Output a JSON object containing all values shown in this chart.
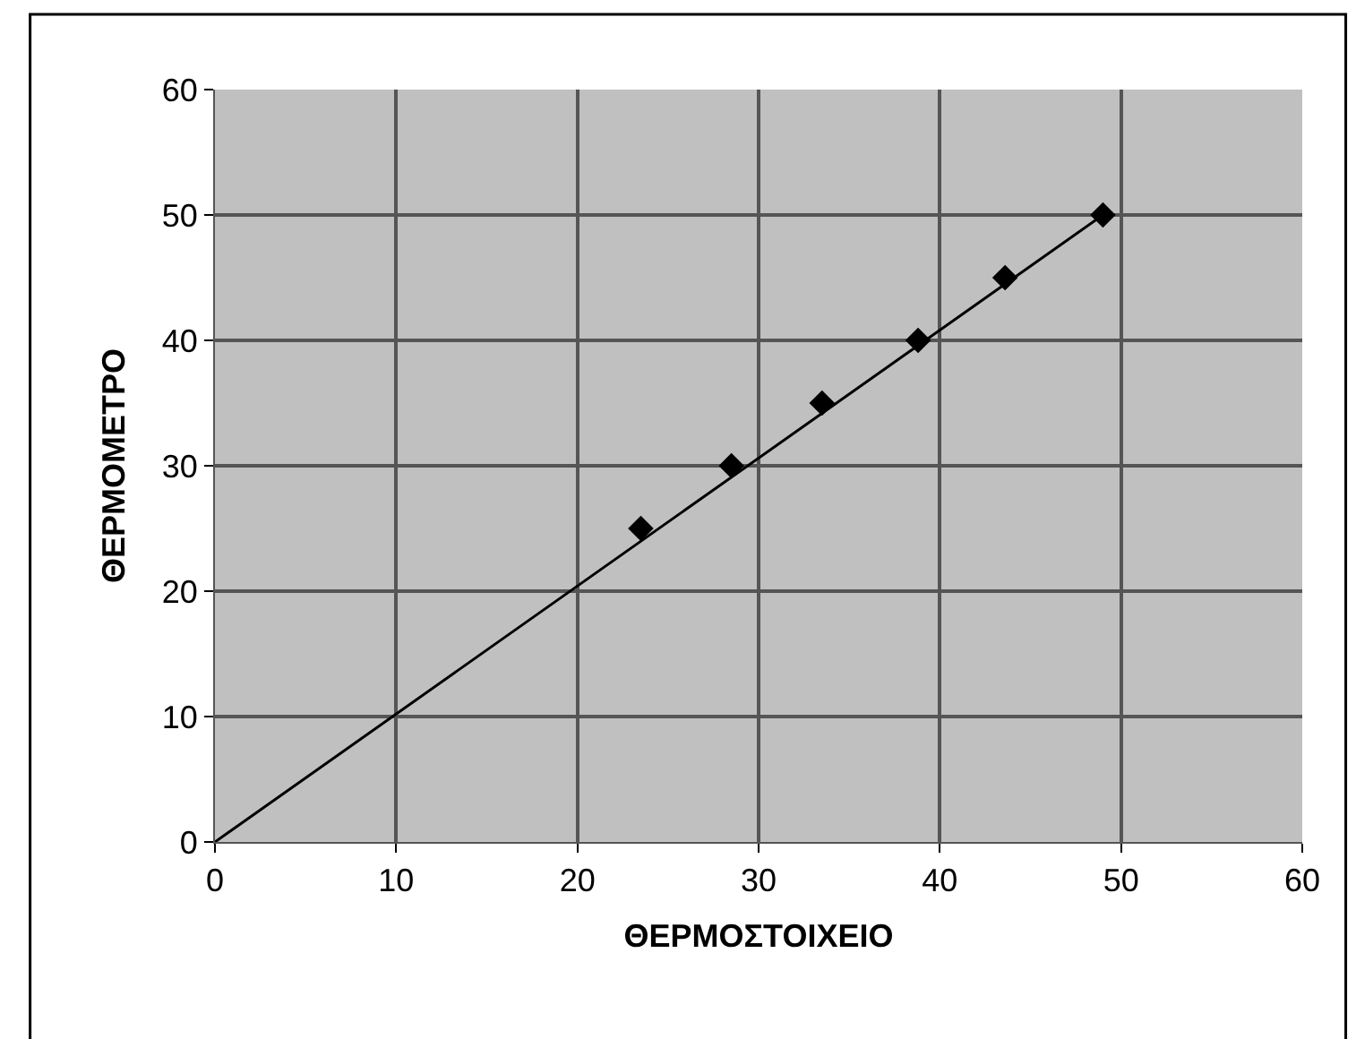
{
  "chart_data": {
    "type": "scatter",
    "xlabel": "ΘΕΡΜΟΣΤΟΙΧΕΙΟ",
    "ylabel": "ΘΕΡΜΟΜΕΤΡΟ",
    "xlim": [
      0,
      60
    ],
    "ylim": [
      0,
      60
    ],
    "xticks": [
      0,
      10,
      20,
      30,
      40,
      50,
      60
    ],
    "yticks": [
      0,
      10,
      20,
      30,
      40,
      50,
      60
    ],
    "grid": true,
    "marker": "diamond",
    "series": [
      {
        "color": "#000000",
        "x": [
          23.5,
          28.5,
          33.5,
          38.8,
          43.6,
          49
        ],
        "values": [
          25,
          30,
          35,
          40,
          45,
          50
        ]
      },
      {
        "type": "line",
        "color": "#000000",
        "x": [
          0,
          49
        ],
        "values": [
          0,
          50
        ],
        "marker": "none",
        "line_style": "solid"
      }
    ]
  }
}
